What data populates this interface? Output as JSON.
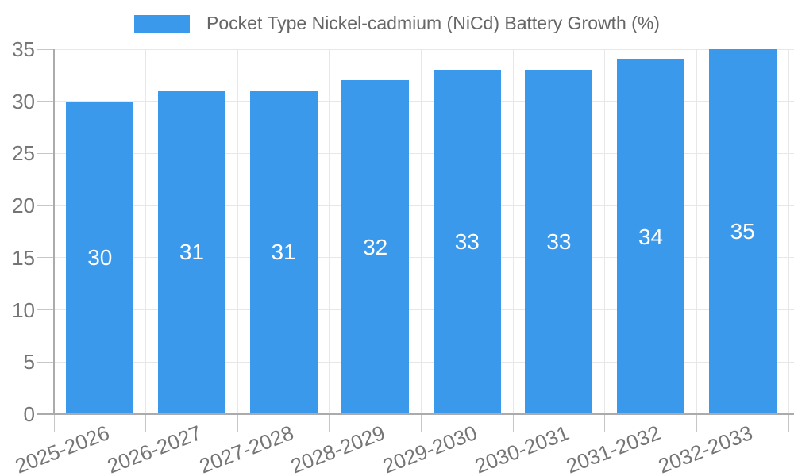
{
  "chart_data": {
    "type": "bar",
    "title": "Pocket Type Nickel-cadmium (NiCd) Battery Growth (%)",
    "categories": [
      "2025-2026",
      "2026-2027",
      "2027-2028",
      "2028-2029",
      "2029-2030",
      "2030-2031",
      "2031-2032",
      "2032-2033"
    ],
    "values": [
      30,
      31,
      31,
      32,
      33,
      33,
      34,
      35
    ],
    "value_labels": [
      "30",
      "31",
      "31",
      "32",
      "33",
      "33",
      "34",
      "35"
    ],
    "xlabel": "",
    "ylabel": "",
    "ylim": [
      0,
      35
    ],
    "yticks": [
      0,
      5,
      10,
      15,
      20,
      25,
      30,
      35
    ],
    "grid": true,
    "legend_position": "top",
    "value_label_position": "bar-center",
    "x_label_rotation_deg": -21,
    "colors": {
      "bar": "#3b99ec",
      "grid": "#e7e7e7",
      "axis": "#ababab",
      "tick": "#c6c6c6",
      "tick_text": "#757575",
      "title_text": "#666666",
      "value_text": "#ffffff",
      "background": "#ffffff"
    }
  }
}
